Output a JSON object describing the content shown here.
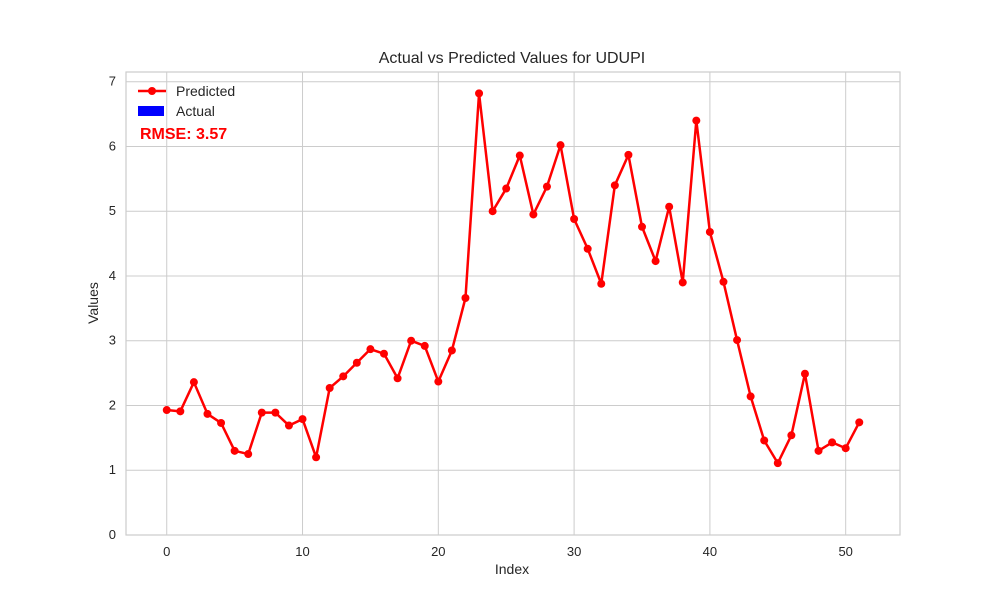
{
  "chart_data": {
    "type": "line",
    "title": "Actual vs Predicted Values for UDUPI",
    "xlabel": "Index",
    "ylabel": "Values",
    "xlim": [
      -3,
      54
    ],
    "ylim": [
      0,
      7.15
    ],
    "x_ticks": [
      0,
      10,
      20,
      30,
      40,
      50
    ],
    "y_ticks": [
      0,
      1,
      2,
      3,
      4,
      5,
      6,
      7
    ],
    "grid": true,
    "legend_position": "top-left",
    "annotation": "RMSE: 3.57",
    "series": [
      {
        "name": "Predicted",
        "color": "#ff0000",
        "marker": "circle",
        "x": [
          0,
          1,
          2,
          3,
          4,
          5,
          6,
          7,
          8,
          9,
          10,
          11,
          12,
          13,
          14,
          15,
          16,
          17,
          18,
          19,
          20,
          21,
          22,
          23,
          24,
          25,
          26,
          27,
          28,
          29,
          30,
          31,
          32,
          33,
          34,
          35,
          36,
          37,
          38,
          39,
          40,
          41,
          42,
          43,
          44,
          45,
          46,
          47,
          48,
          49,
          50,
          51
        ],
        "values": [
          1.93,
          1.91,
          2.36,
          1.87,
          1.73,
          1.3,
          1.25,
          1.89,
          1.89,
          1.69,
          1.79,
          1.2,
          2.27,
          2.45,
          2.66,
          2.87,
          2.8,
          2.42,
          3.0,
          2.92,
          2.37,
          2.85,
          3.66,
          6.82,
          5.0,
          5.35,
          5.86,
          4.95,
          5.38,
          6.02,
          4.88,
          4.42,
          3.88,
          5.4,
          5.87,
          4.76,
          4.23,
          5.07,
          3.9,
          6.4,
          4.68,
          3.91,
          3.01,
          2.14,
          1.46,
          1.11,
          1.54,
          2.49,
          1.3,
          1.43,
          1.34,
          1.74
        ]
      },
      {
        "name": "Actual",
        "color": "#0000ff",
        "x": [],
        "values": []
      }
    ]
  }
}
